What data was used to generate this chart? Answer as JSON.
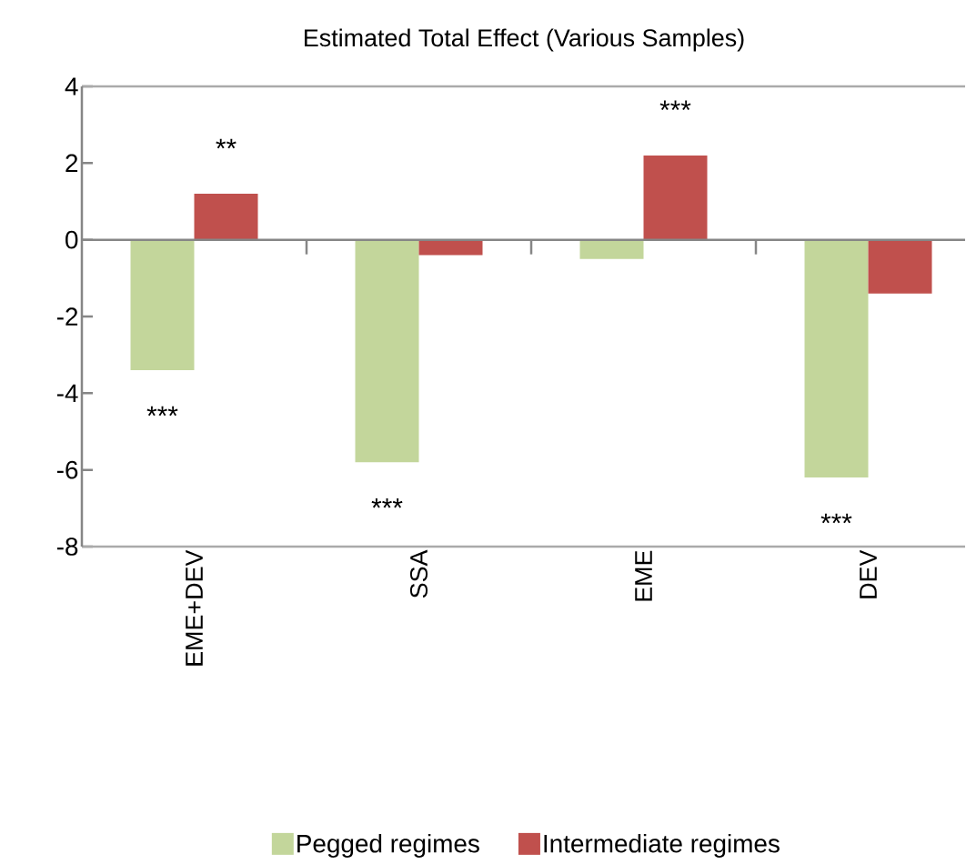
{
  "chart_data": {
    "type": "bar",
    "title": "Estimated Total Effect (Various Samples)",
    "categories": [
      "EME+DEV",
      "SSA",
      "EME",
      "DEV"
    ],
    "series": [
      {
        "name": "Pegged regimes",
        "color": "#c3d69b",
        "values": [
          -3.4,
          -5.8,
          -0.5,
          -6.2
        ]
      },
      {
        "name": "Intermediate regimes",
        "color": "#c0504d",
        "values": [
          1.2,
          -0.4,
          2.2,
          -1.4
        ]
      }
    ],
    "ylim": [
      -8,
      4
    ],
    "yticks": [
      -8,
      -6,
      -4,
      -2,
      0,
      2,
      4
    ],
    "legend": "bottom",
    "annotations": [
      {
        "text": "**",
        "x": "EME+DEV",
        "y": 1.2
      },
      {
        "text": "***",
        "x": "EME+DEV",
        "y": -3.4
      },
      {
        "text": "***",
        "x": "SSA",
        "y": -5.8
      },
      {
        "text": "***",
        "x": "EME",
        "y": 2.2
      },
      {
        "text": "***",
        "x": "DEV",
        "y": -6.2
      }
    ]
  }
}
